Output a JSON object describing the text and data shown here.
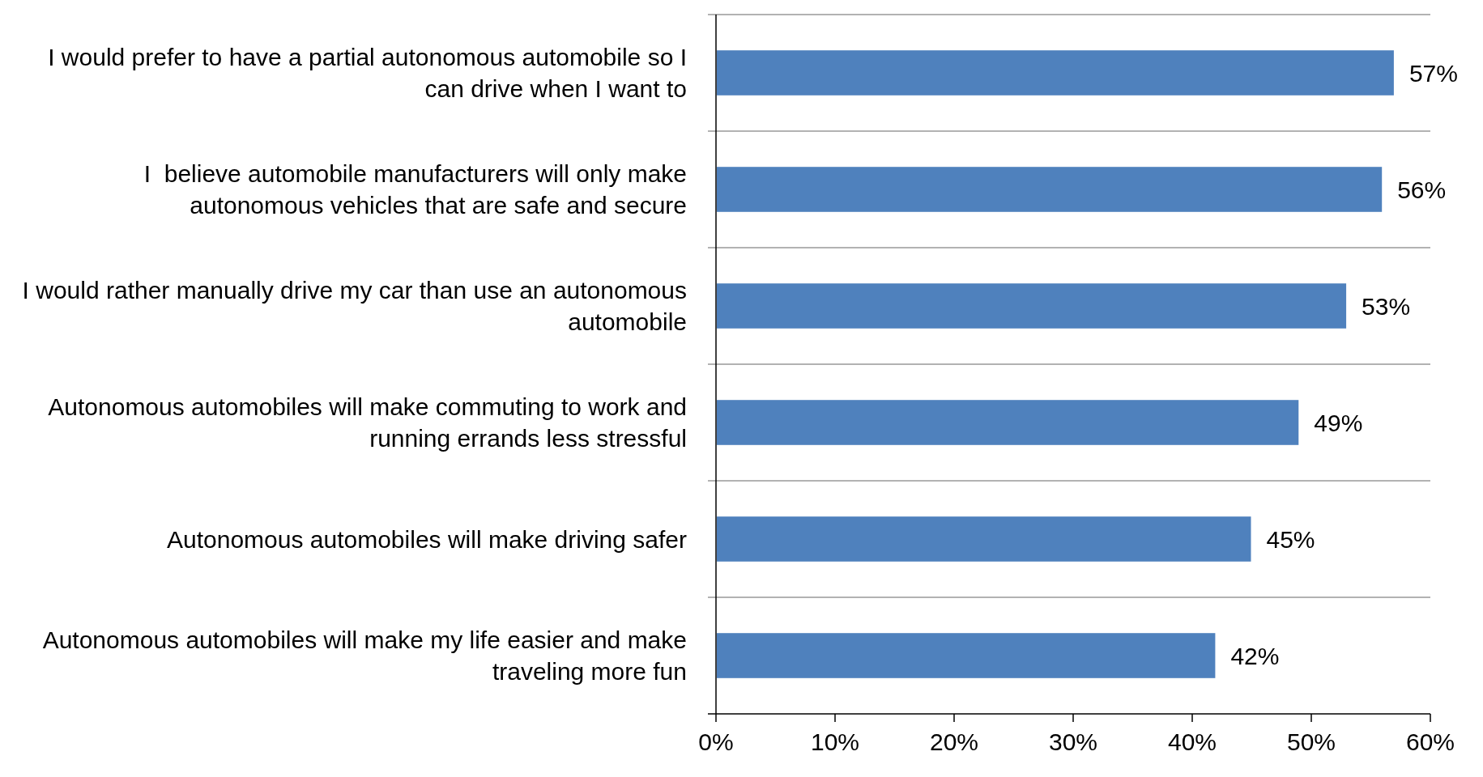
{
  "chart_data": {
    "type": "bar",
    "orientation": "horizontal",
    "categories": [
      "I would prefer to have a partial autonomous automobile so I can drive when I want to",
      "I  believe automobile manufacturers will only make autonomous vehicles that are safe and secure",
      "I would rather manually drive my car than use an autonomous automobile",
      "Autonomous automobiles will make commuting to work and running errands less stressful",
      "Autonomous automobiles will make driving safer",
      "Autonomous automobiles will make my life easier and make traveling more fun"
    ],
    "values": [
      57,
      56,
      53,
      49,
      45,
      42
    ],
    "value_labels": [
      "57%",
      "56%",
      "53%",
      "49%",
      "45%",
      "42%"
    ],
    "color": "#4f81bd",
    "xlim": [
      0,
      60
    ],
    "xticks": [
      {
        "value": 0,
        "label": "0%"
      },
      {
        "value": 10,
        "label": "10%"
      },
      {
        "value": 20,
        "label": "20%"
      },
      {
        "value": 30,
        "label": "30%"
      },
      {
        "value": 40,
        "label": "40%"
      },
      {
        "value": 50,
        "label": "50%"
      },
      {
        "value": 60,
        "label": "60%"
      }
    ],
    "grid": "y"
  }
}
